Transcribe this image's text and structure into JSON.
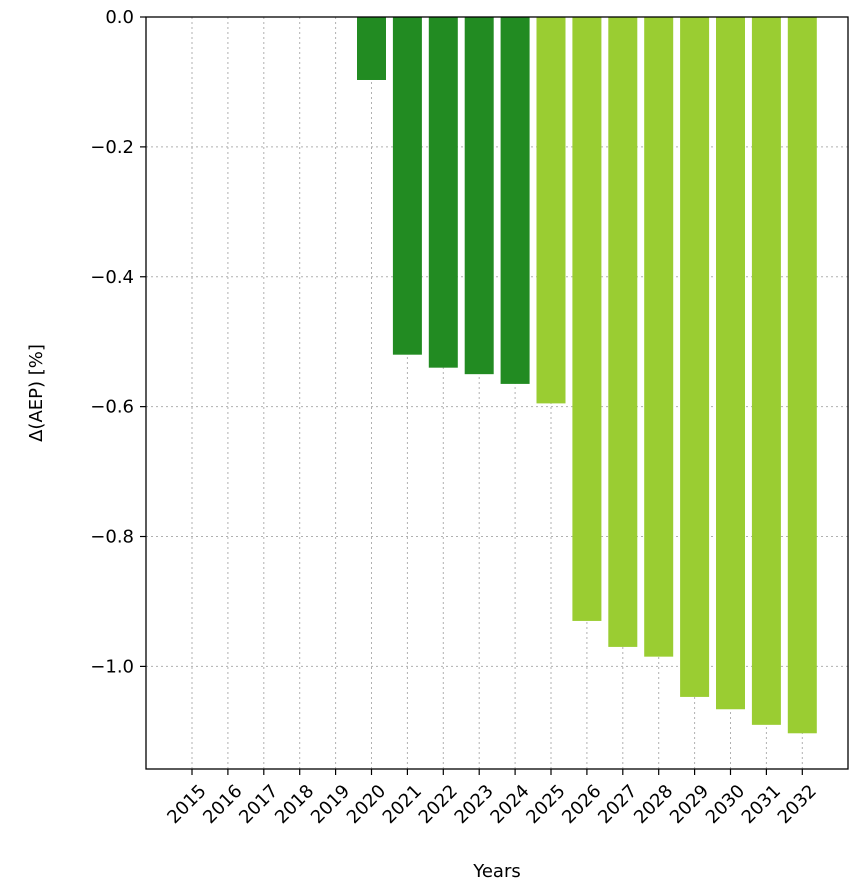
{
  "chart_data": {
    "type": "bar",
    "categories": [
      "2015",
      "2016",
      "2017",
      "2018",
      "2019",
      "2020",
      "2021",
      "2022",
      "2023",
      "2024",
      "2025",
      "2026",
      "2027",
      "2028",
      "2029",
      "2030",
      "2031",
      "2032"
    ],
    "values": [
      0,
      0,
      0,
      0,
      0,
      -0.097,
      -0.52,
      -0.54,
      -0.55,
      -0.565,
      -0.595,
      -0.93,
      -0.97,
      -0.985,
      -1.047,
      -1.066,
      -1.09,
      -1.103
    ],
    "bar_colors": [
      "#228b22",
      "#228b22",
      "#228b22",
      "#228b22",
      "#228b22",
      "#228b22",
      "#228b22",
      "#228b22",
      "#228b22",
      "#228b22",
      "#9acd32",
      "#9acd32",
      "#9acd32",
      "#9acd32",
      "#9acd32",
      "#9acd32",
      "#9acd32",
      "#9acd32"
    ],
    "xlabel": "Years",
    "ylabel": "Δ(AEP) [%]",
    "yticks": [
      0.0,
      -0.2,
      -0.4,
      -0.6,
      -0.8,
      -1.0
    ],
    "ytick_labels": [
      "0.0",
      "−0.2",
      "−0.4",
      "−0.6",
      "−0.8",
      "−1.0"
    ],
    "ylim": [
      -1.158,
      0.0
    ],
    "grid": true
  }
}
